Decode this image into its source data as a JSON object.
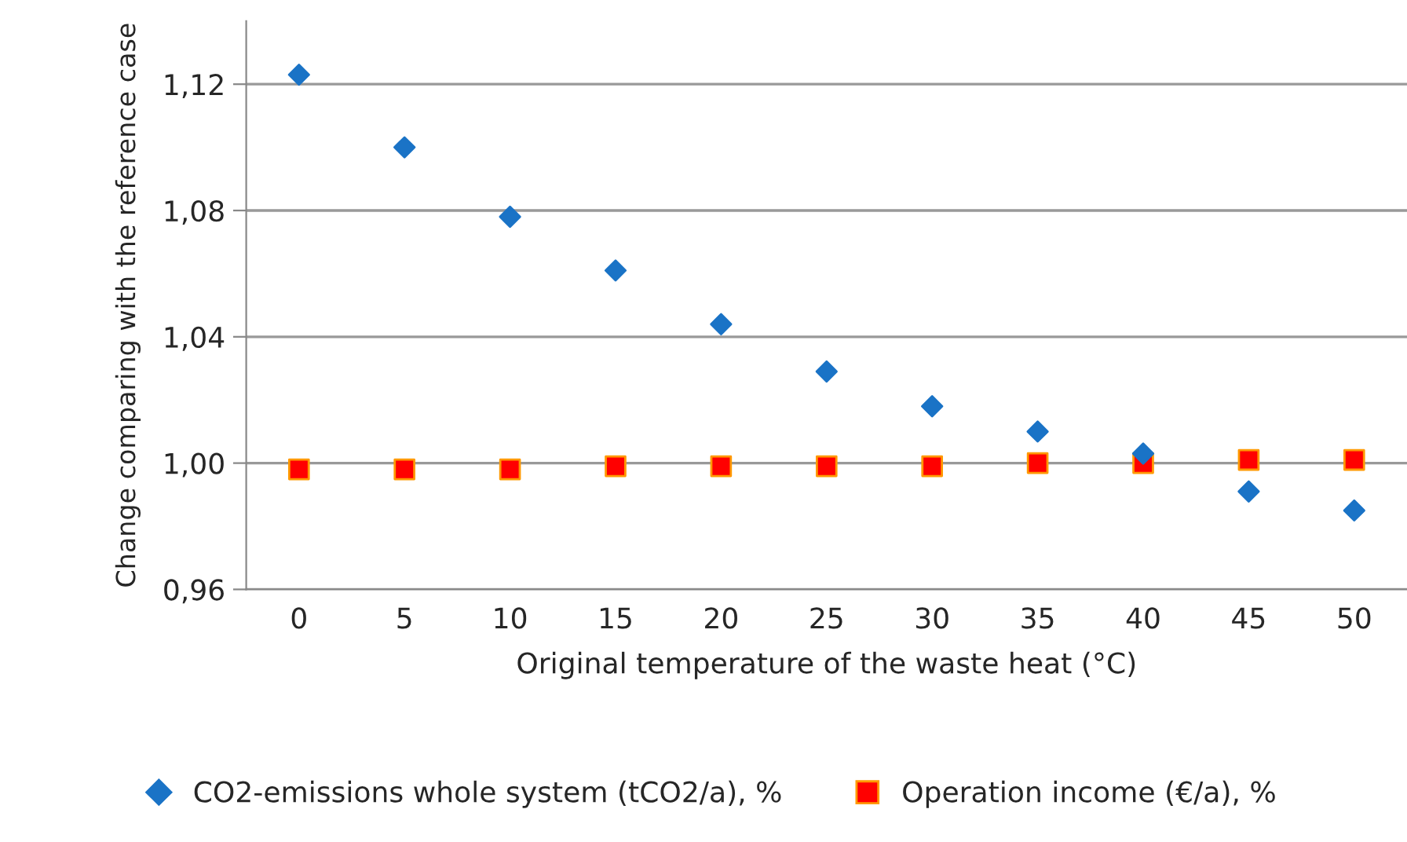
{
  "chart_data": {
    "type": "scatter",
    "xlabel": "Original temperature of the waste heat (°C)",
    "ylabel": "Change comparing with the reference case",
    "categories": [
      "0",
      "5",
      "10",
      "15",
      "20",
      "25",
      "30",
      "35",
      "40",
      "45",
      "50"
    ],
    "series": [
      {
        "name": "CO2-emissions whole system (tCO2/a), %",
        "color": "#1a73c6",
        "marker": "diamond",
        "values": [
          1.123,
          1.1,
          1.078,
          1.061,
          1.044,
          1.029,
          1.018,
          1.01,
          1.003,
          0.991,
          0.985
        ]
      },
      {
        "name": "Operation income (€/a), %",
        "color": "#ff0000",
        "marker": "square",
        "values": [
          0.998,
          0.998,
          0.998,
          0.999,
          0.999,
          0.999,
          0.999,
          1.0,
          1.0,
          1.001,
          1.001
        ]
      }
    ],
    "ylim": [
      0.96,
      1.14
    ],
    "yticks": [
      {
        "value": 0.96,
        "label": "0,96"
      },
      {
        "value": 1.0,
        "label": "1,00"
      },
      {
        "value": 1.04,
        "label": "1,04"
      },
      {
        "value": 1.08,
        "label": "1,08"
      },
      {
        "value": 1.12,
        "label": "1,12"
      }
    ],
    "grid": "y",
    "legend": "bottom"
  }
}
